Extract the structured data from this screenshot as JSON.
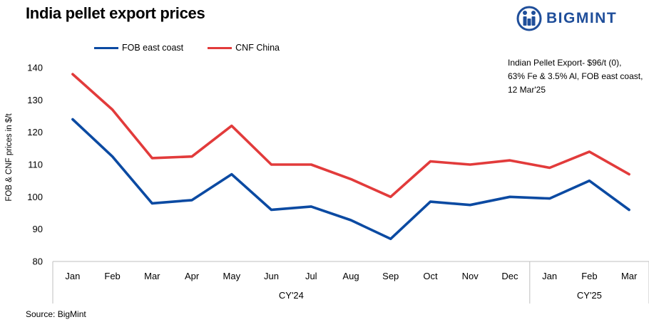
{
  "header": {
    "title": "India pellet export prices",
    "brand": "BIGMINT"
  },
  "annotation": {
    "lines": [
      "Indian Pellet Export- $96/t (0),",
      "63% Fe & 3.5% Al, FOB east coast,",
      "12 Mar'25"
    ]
  },
  "source": "Source: BigMint",
  "colors": {
    "fob": "#0b4aa2",
    "cnf": "#e23b3b",
    "brand": "#1f4e9a"
  },
  "chart_data": {
    "type": "line",
    "title": "India pellet export prices",
    "ylabel": "FOB & CNF prices in $/t",
    "xlabel": "",
    "ylim": [
      80,
      140
    ],
    "yticks": [
      "80",
      "90",
      "100",
      "110",
      "120",
      "130",
      "140"
    ],
    "categories": [
      "Jan",
      "Feb",
      "Mar",
      "Apr",
      "May",
      "Jun",
      "Jul",
      "Aug",
      "Sep",
      "Oct",
      "Nov",
      "Dec",
      "Jan",
      "Feb",
      "Mar"
    ],
    "groups": [
      {
        "label": "CY'24",
        "count": 12
      },
      {
        "label": "CY'25",
        "count": 3
      }
    ],
    "legend_position": "top-left",
    "grid": false,
    "series": [
      {
        "name": "FOB east coast",
        "color": "#0b4aa2",
        "values": [
          124,
          112.5,
          98,
          99,
          107,
          96,
          97,
          92.8,
          87,
          98.5,
          97.5,
          100,
          99.5,
          105,
          96
        ]
      },
      {
        "name": "CNF China",
        "color": "#e23b3b",
        "values": [
          138,
          127,
          112,
          112.5,
          122,
          110,
          110,
          105.5,
          100,
          111,
          110,
          111.3,
          109,
          114,
          107
        ]
      }
    ]
  }
}
